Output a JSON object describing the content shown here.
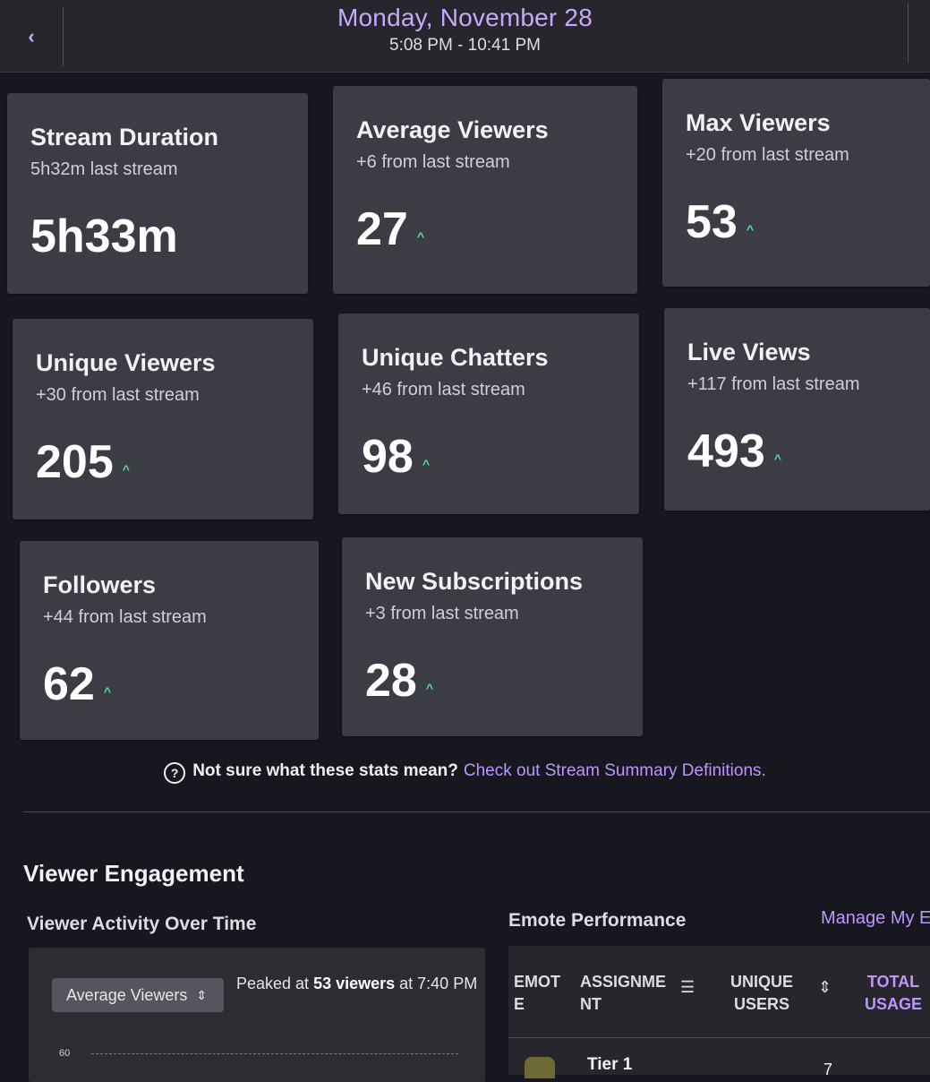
{
  "header": {
    "back_icon": "chevron-left-icon",
    "date": "Monday, November 28",
    "time_range": "5:08 PM - 10:41 PM"
  },
  "cards": [
    {
      "title": "Stream Duration",
      "sub": "5h32m last stream",
      "value": "5h33m",
      "trend": ""
    },
    {
      "title": "Average Viewers",
      "sub": "+6 from last stream",
      "value": "27",
      "trend": "^"
    },
    {
      "title": "Max Viewers",
      "sub": "+20 from last stream",
      "value": "53",
      "trend": "^"
    },
    {
      "title": "Unique Viewers",
      "sub": "+30 from last stream",
      "value": "205",
      "trend": "^"
    },
    {
      "title": "Unique Chatters",
      "sub": "+46 from last stream",
      "value": "98",
      "trend": "^"
    },
    {
      "title": "Live Views",
      "sub": "+117 from last stream",
      "value": "493",
      "trend": "^"
    },
    {
      "title": "Followers",
      "sub": "+44 from last stream",
      "value": "62",
      "trend": "^"
    },
    {
      "title": "New Subscriptions",
      "sub": "+3 from last stream",
      "value": "28",
      "trend": "^"
    }
  ],
  "help": {
    "icon": "?",
    "text": "Not sure what these stats mean?",
    "link": "Check out Stream Summary Definitions."
  },
  "engagement": {
    "title": "Viewer Engagement",
    "activity_title": "Viewer Activity Over Time",
    "emote_title": "Emote Performance",
    "manage_link": "Manage My Em",
    "select_value": "Average Viewers",
    "peak_prefix": "Peaked at ",
    "peak_bold": "53 viewers",
    "peak_suffix": " at 7:40 PM",
    "axis_tick": "60"
  },
  "emote_table": {
    "columns": [
      "EMOTE",
      "ASSIGNMENT",
      "UNIQUE USERS",
      "TOTAL USAGE"
    ],
    "col_lines": [
      [
        "EMOT",
        "E"
      ],
      [
        "ASSIGNME",
        "NT"
      ],
      [
        "UNIQUE",
        "USERS"
      ],
      [
        "TOTAL",
        "USAGE"
      ]
    ],
    "rows": [
      {
        "assignment": "Tier 1",
        "unique_users": "7"
      }
    ]
  },
  "colors": {
    "accent": "#bf94ff",
    "trend_up": "#4fe0a4",
    "card_bg": "#3c3c44",
    "page_bg": "#17171f"
  }
}
